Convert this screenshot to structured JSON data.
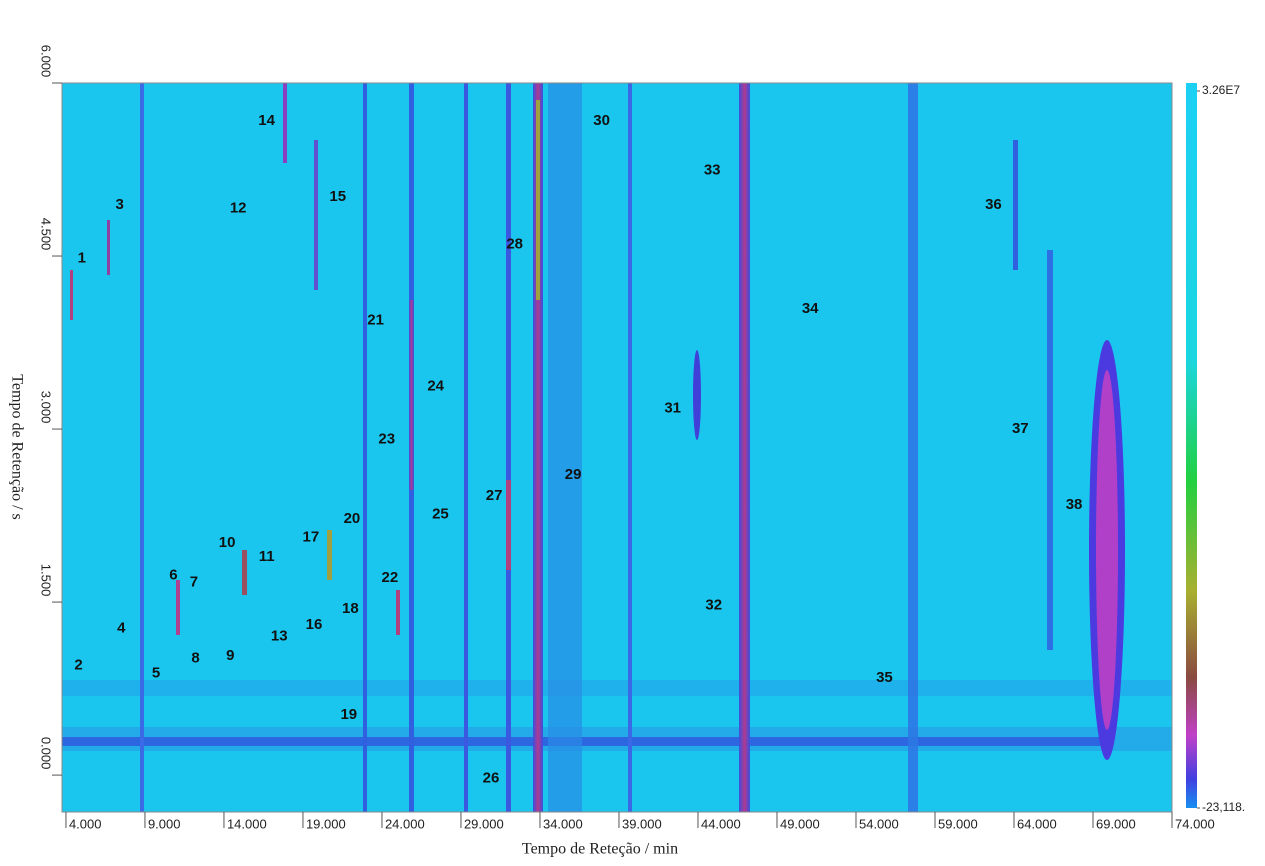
{
  "chart_data": {
    "type": "contour",
    "x_label": "Tempo de Reteção / min",
    "y_label": "Tempo de Retenção / s",
    "xlim": [
      3.75,
      74
    ],
    "ylim": [
      -0.32,
      6
    ],
    "xticks": [
      {
        "value": 4,
        "label": "4.000"
      },
      {
        "value": 9,
        "label": "9.000"
      },
      {
        "value": 14,
        "label": "14.000"
      },
      {
        "value": 19,
        "label": "19.000"
      },
      {
        "value": 24,
        "label": "24.000"
      },
      {
        "value": 29,
        "label": "29.000"
      },
      {
        "value": 34,
        "label": "34.000"
      },
      {
        "value": 39,
        "label": "39.000"
      },
      {
        "value": 44,
        "label": "44.000"
      },
      {
        "value": 49,
        "label": "49.000"
      },
      {
        "value": 54,
        "label": "54.000"
      },
      {
        "value": 59,
        "label": "59.000"
      },
      {
        "value": 64,
        "label": "64.000"
      },
      {
        "value": 69,
        "label": "69.000"
      },
      {
        "value": 74,
        "label": "74.000"
      }
    ],
    "yticks": [
      {
        "value": 0,
        "label": "0.000"
      },
      {
        "value": 1.5,
        "label": "1.500"
      },
      {
        "value": 3,
        "label": "3.000"
      },
      {
        "value": 4.5,
        "label": "4.500"
      },
      {
        "value": 6,
        "label": "6.000"
      }
    ],
    "colorbar": {
      "ticks": [
        {
          "value": 32600000,
          "label": "3.26E7"
        },
        {
          "value": -23118,
          "label": "-23,118."
        }
      ]
    },
    "peaks": [
      {
        "label": "1",
        "x": 5.0,
        "y": 4.48
      },
      {
        "label": "2",
        "x": 4.8,
        "y": 0.95
      },
      {
        "label": "3",
        "x": 7.4,
        "y": 4.94
      },
      {
        "label": "4",
        "x": 7.5,
        "y": 1.27
      },
      {
        "label": "5",
        "x": 9.7,
        "y": 0.88
      },
      {
        "label": "6",
        "x": 10.8,
        "y": 1.73
      },
      {
        "label": "7",
        "x": 12.1,
        "y": 1.67
      },
      {
        "label": "8",
        "x": 12.2,
        "y": 1.01
      },
      {
        "label": "9",
        "x": 14.4,
        "y": 1.03
      },
      {
        "label": "10",
        "x": 14.2,
        "y": 2.01
      },
      {
        "label": "11",
        "x": 16.7,
        "y": 1.89
      },
      {
        "label": "12",
        "x": 14.9,
        "y": 4.91
      },
      {
        "label": "13",
        "x": 17.5,
        "y": 1.2
      },
      {
        "label": "14",
        "x": 16.7,
        "y": 5.67
      },
      {
        "label": "15",
        "x": 21.2,
        "y": 5.01
      },
      {
        "label": "16",
        "x": 19.7,
        "y": 1.3
      },
      {
        "label": "17",
        "x": 19.5,
        "y": 2.06
      },
      {
        "label": "18",
        "x": 22.0,
        "y": 1.44
      },
      {
        "label": "19",
        "x": 21.9,
        "y": 0.52
      },
      {
        "label": "20",
        "x": 22.1,
        "y": 2.22
      },
      {
        "label": "21",
        "x": 23.6,
        "y": 3.94
      },
      {
        "label": "22",
        "x": 24.5,
        "y": 1.71
      },
      {
        "label": "23",
        "x": 24.3,
        "y": 2.91
      },
      {
        "label": "24",
        "x": 27.4,
        "y": 3.37
      },
      {
        "label": "25",
        "x": 27.7,
        "y": 2.26
      },
      {
        "label": "26",
        "x": 30.9,
        "y": -0.03
      },
      {
        "label": "27",
        "x": 31.1,
        "y": 2.42
      },
      {
        "label": "28",
        "x": 32.4,
        "y": 4.6
      },
      {
        "label": "29",
        "x": 36.1,
        "y": 2.6
      },
      {
        "label": "30",
        "x": 37.9,
        "y": 5.67
      },
      {
        "label": "31",
        "x": 42.4,
        "y": 3.18
      },
      {
        "label": "32",
        "x": 45.0,
        "y": 1.47
      },
      {
        "label": "33",
        "x": 44.9,
        "y": 5.24
      },
      {
        "label": "34",
        "x": 51.1,
        "y": 4.04
      },
      {
        "label": "35",
        "x": 55.8,
        "y": 0.84
      },
      {
        "label": "36",
        "x": 62.7,
        "y": 4.94
      },
      {
        "label": "37",
        "x": 64.4,
        "y": 3.0
      },
      {
        "label": "38",
        "x": 67.8,
        "y": 2.34
      }
    ]
  }
}
